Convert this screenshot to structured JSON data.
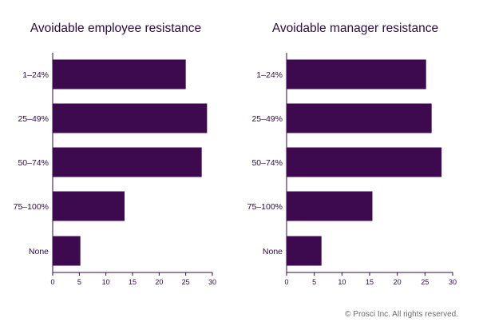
{
  "bar_color": "#3d0a4f",
  "text_color": "#2d0a3e",
  "footer": {
    "copyright": "© Prosci Inc. All rights reserved."
  },
  "chart_data": [
    {
      "type": "bar",
      "orientation": "horizontal",
      "title": "Avoidable employee resistance",
      "categories": [
        "1–24%",
        "25–49%",
        "50–74%",
        "75–100%",
        "None"
      ],
      "values": [
        25,
        29,
        28,
        13.5,
        5.2
      ],
      "xlim": [
        0,
        30
      ],
      "xticks": [
        0,
        5,
        10,
        15,
        20,
        25,
        30
      ],
      "grid": false
    },
    {
      "type": "bar",
      "orientation": "horizontal",
      "title": "Avoidable manager resistance",
      "categories": [
        "1–24%",
        "25–49%",
        "50–74%",
        "75–100%",
        "None"
      ],
      "values": [
        25.2,
        26.2,
        28,
        15.5,
        6.3
      ],
      "xlim": [
        0,
        30
      ],
      "xticks": [
        0,
        5,
        10,
        15,
        20,
        25,
        30
      ],
      "grid": false
    }
  ]
}
